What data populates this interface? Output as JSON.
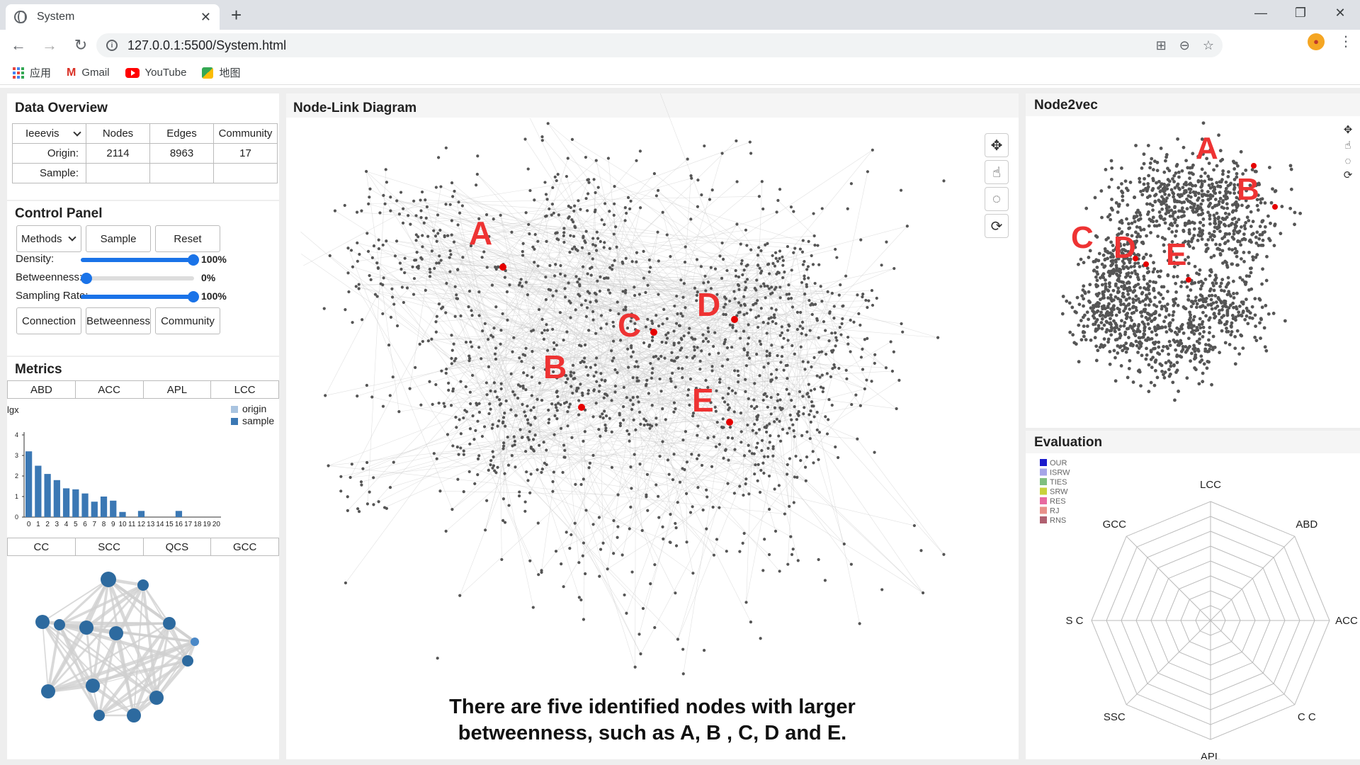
{
  "browser": {
    "tab_title": "System",
    "url": "127.0.0.1:5500/System.html",
    "bookmarks": [
      "应用",
      "Gmail",
      "YouTube",
      "地图"
    ]
  },
  "overview": {
    "title": "Data Overview",
    "dataset": "Ieeevis",
    "headers": [
      "Nodes",
      "Edges",
      "Community"
    ],
    "origin_label": "Origin:",
    "sample_label": "Sample:",
    "origin_values": [
      "2114",
      "8963",
      "17"
    ]
  },
  "control": {
    "title": "Control Panel",
    "methods_label": "Methods",
    "sample_button": "Sample",
    "reset_button": "Reset",
    "sliders": [
      {
        "label": "Density:",
        "value_text": "100%",
        "value": 1.0
      },
      {
        "label": "Betweenness:",
        "value_text": "0%",
        "value": 0.0
      },
      {
        "label": "Sampling Rate:",
        "value_text": "100%",
        "value": 1.0
      }
    ],
    "connection_button": "Connection",
    "betweenness_button": "Betweenness",
    "community_button": "Community"
  },
  "metrics": {
    "title": "Metrics",
    "tabs_top": [
      "ABD",
      "ACC",
      "APL",
      "LCC"
    ],
    "tabs_bottom": [
      "CC",
      "SCC",
      "QCS",
      "GCC"
    ]
  },
  "chart_data": {
    "type": "bar",
    "ylabel": "lgx",
    "ylim": [
      0,
      4
    ],
    "yticks": [
      "0",
      "1",
      "2",
      "3",
      "4"
    ],
    "categories": [
      "0",
      "1",
      "2",
      "3",
      "4",
      "5",
      "6",
      "7",
      "8",
      "9",
      "10",
      "11",
      "12",
      "13",
      "14",
      "15",
      "16",
      "17",
      "18",
      "19",
      "20"
    ],
    "series": [
      {
        "name": "origin",
        "color": "#a9c4e0",
        "values": [
          0,
          0,
          0,
          0,
          0,
          0,
          0,
          0,
          0,
          0,
          0,
          0,
          0,
          0,
          0,
          0,
          0,
          0,
          0,
          0,
          0
        ]
      },
      {
        "name": "sample",
        "color": "#3b78b4",
        "values": [
          3.2,
          2.5,
          2.1,
          1.8,
          1.4,
          1.35,
          1.15,
          0.75,
          1.0,
          0.8,
          0.25,
          0,
          0.3,
          0,
          0,
          0,
          0.3,
          0,
          0,
          0,
          0
        ]
      }
    ],
    "legend": "top-right"
  },
  "center": {
    "title": "Node-Link Diagram",
    "caption_line1": "There are five identified nodes with larger",
    "caption_line2": "betweenness, such as A, B , C, D and E.",
    "labels": [
      "A",
      "B",
      "C",
      "D",
      "E"
    ]
  },
  "node2vec": {
    "title": "Node2vec",
    "labels": [
      "A",
      "B",
      "C",
      "D",
      "E"
    ]
  },
  "evaluation": {
    "title": "Evaluation",
    "legend": [
      {
        "name": "OUR",
        "color": "#1a1acc"
      },
      {
        "name": "ISRW",
        "color": "#a5a5e8"
      },
      {
        "name": "TIES",
        "color": "#7fbf7f"
      },
      {
        "name": "SRW",
        "color": "#c8d23c"
      },
      {
        "name": "RES",
        "color": "#e86aa0"
      },
      {
        "name": "RJ",
        "color": "#e8908a"
      },
      {
        "name": "RNS",
        "color": "#b06070"
      }
    ],
    "axes": [
      "LCC",
      "ABD",
      "ACC",
      "C C",
      "APL",
      "SSC",
      "S C",
      "GCC"
    ]
  },
  "icons": {
    "tools": [
      "move-icon",
      "pointer-icon",
      "lasso-icon",
      "refresh-icon"
    ]
  }
}
